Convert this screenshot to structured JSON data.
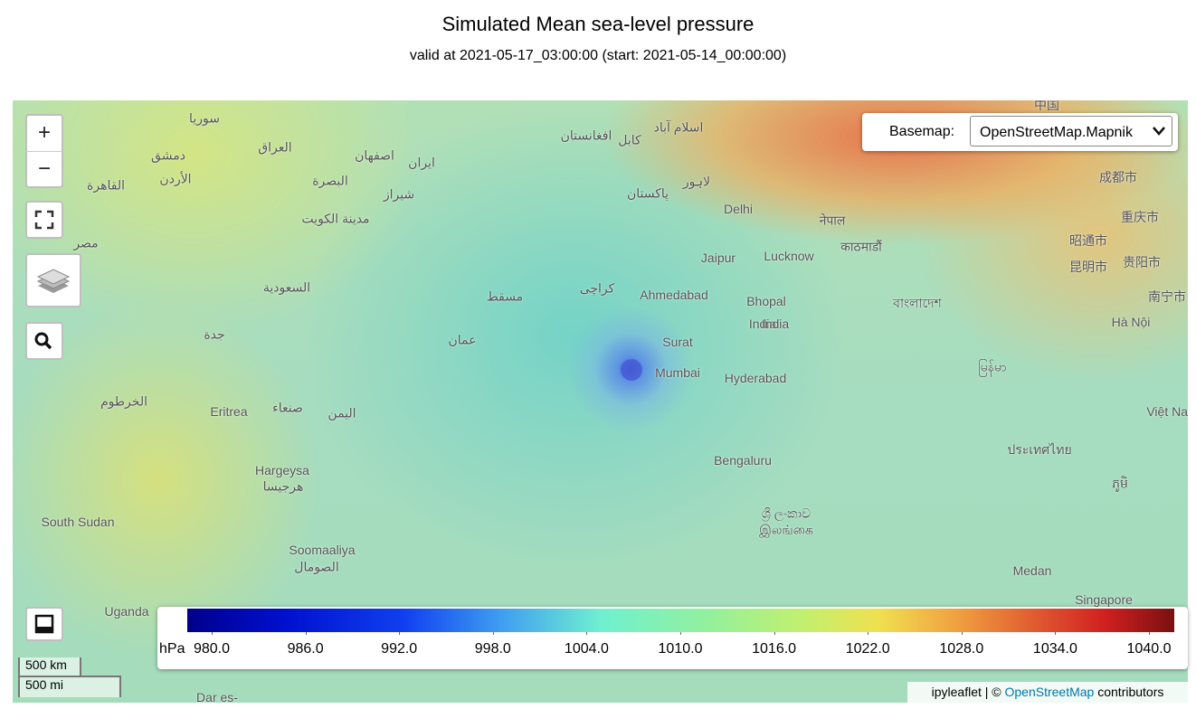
{
  "header": {
    "title": "Simulated Mean sea-level pressure",
    "subtitle": "valid at 2021-05-17_03:00:00 (start: 2021-05-14_00:00:00)"
  },
  "controls": {
    "zoom_in": "+",
    "zoom_out": "−",
    "basemap_label": "Basemap:",
    "basemap_value": "OpenStreetMap.Mapnik"
  },
  "map_labels": [
    "Delhi",
    "Jaipur",
    "Lucknow",
    "Ahmedabad",
    "Bhopal",
    "India",
    "Surat",
    "Mumbai",
    "Hyderabad",
    "Bengaluru",
    "Eritrea",
    "Hargeysa",
    "South Sudan",
    "Soomaaliya",
    "Medan",
    "Singapore",
    "Uganda",
    "Dar es-",
    "Hà Nội",
    "Việt Nam",
    "成都市",
    "重庆市",
    "昭通市",
    "昆明市",
    "贵阳市",
    "南宁市",
    "中国",
    "नेपाल",
    "काठमाडौं",
    "پاکستان",
    "افغانستان",
    "ایران",
    "العراق",
    "السعودية",
    "اليمن",
    "مسقط",
    "كراچی",
    "عمان",
    "لاہور",
    "اسلام آباد",
    "کابل",
    "شیراز",
    "اصفهان",
    "البصرة",
    "مدينة الكويت",
    "الأردن",
    "القاهرة",
    "مصر",
    "سوريا",
    "دمشق",
    "جدة",
    "الخرطوم",
    "صنعاء",
    "هرجيسا",
    "الصومال",
    "ශ්‍රී ලංකාව",
    "இலங்கை",
    "India",
    "বাংলাদেশ",
    "မြန်မာ",
    "ประเทศไทย",
    "ភូមិ"
  ],
  "colorbar": {
    "unit": "hPa",
    "range": [
      980,
      1040
    ],
    "ticks": [
      {
        "value": 980,
        "label": "980.0"
      },
      {
        "value": 986,
        "label": "986.0"
      },
      {
        "value": 992,
        "label": "992.0"
      },
      {
        "value": 998,
        "label": "998.0"
      },
      {
        "value": 1004,
        "label": "1004.0"
      },
      {
        "value": 1010,
        "label": "1010.0"
      },
      {
        "value": 1016,
        "label": "1016.0"
      },
      {
        "value": 1022,
        "label": "1022.0"
      },
      {
        "value": 1028,
        "label": "1028.0"
      },
      {
        "value": 1034,
        "label": "1034.0"
      },
      {
        "value": 1040,
        "label": "1040.0"
      }
    ]
  },
  "scale": {
    "km": "500 km",
    "mi": "500 mi"
  },
  "attribution": {
    "prefix": "ipyleaflet | ©",
    "link": "OpenStreetMap",
    "suffix": "contributors"
  }
}
